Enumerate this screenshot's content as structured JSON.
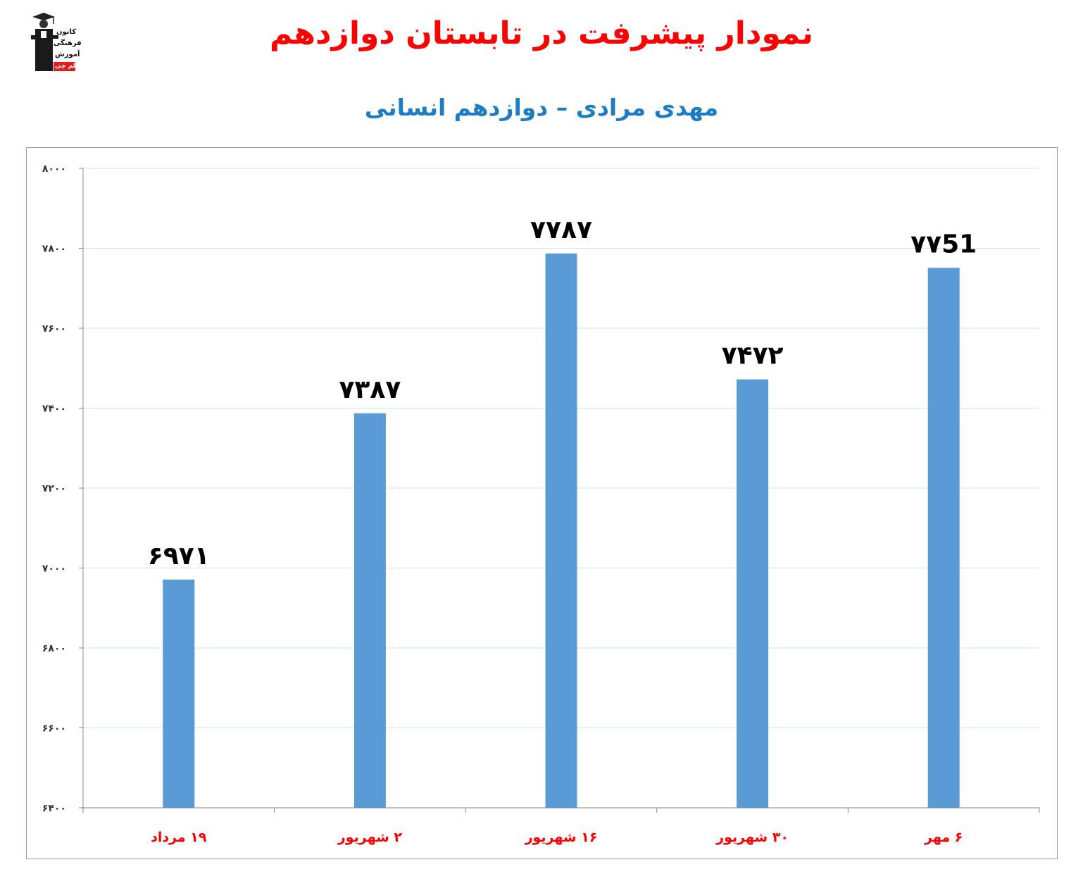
{
  "header": {
    "title": "نمودار پیشرفت در تابستان دوازدهم",
    "subtitle": "مهدی مرادی – دوازدهم انسانی"
  },
  "logo": {
    "lines": [
      "کانون",
      "فرهنگی",
      "آموزش",
      "قلم چی"
    ]
  },
  "colors": {
    "title": "#ff0000",
    "subtitle": "#1c7cc4",
    "bar": "#5b9bd5",
    "category_label": "#ff0000",
    "grid": "#d0e2f2"
  },
  "chart_data": {
    "type": "bar",
    "categories": [
      "۱۹ مرداد",
      "۲ شهریور",
      "۱۶ شهریور",
      "۳۰ شهریور",
      "۶ مهر"
    ],
    "values": [
      6971,
      7387,
      7787,
      7472,
      7751
    ],
    "data_labels": [
      "۶۹۷۱",
      "۷۳۸۷",
      "۷۷۸۷",
      "۷۴۷۲",
      "۷۷51"
    ],
    "ylim": [
      6400,
      8000
    ],
    "yticks": [
      6400,
      6600,
      6800,
      7000,
      7200,
      7400,
      7600,
      7800,
      8000
    ],
    "ytick_labels": [
      "۶۴۰۰",
      "۶۶۰۰",
      "۶۸۰۰",
      "۷۰۰۰",
      "۷۲۰۰",
      "۷۴۰۰",
      "۷۶۰۰",
      "۷۸۰۰",
      "۸۰۰۰"
    ],
    "grid": true,
    "legend": "none",
    "xlabel": "",
    "ylabel": ""
  }
}
